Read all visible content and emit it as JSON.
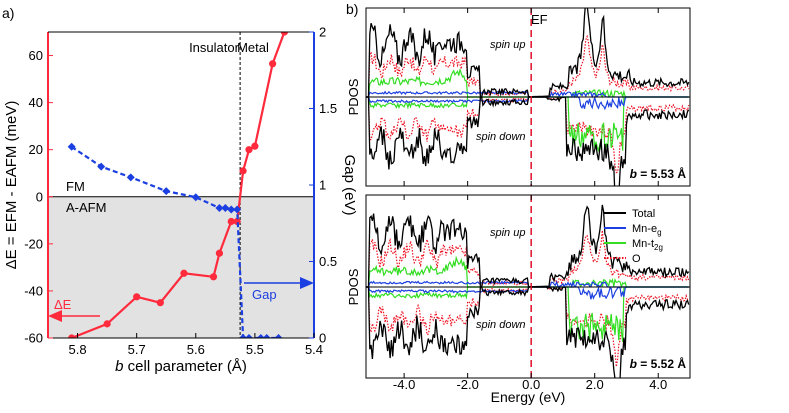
{
  "figure": {
    "panel_a_label": "a)",
    "panel_b_label": "b)"
  },
  "chart_data": [
    {
      "type": "line",
      "panel": "a",
      "xlabel": "b cell parameter (Å)",
      "xlabel_italic": "b",
      "xlabel_rest": " cell parameter (Å)",
      "ylabel_left": "ΔE = EFM - EAFM  (meV)",
      "ylabel_right": "Gap (eV)",
      "xlim": [
        5.85,
        5.4
      ],
      "ylim_left": [
        -60,
        70
      ],
      "ylim_right": [
        0,
        2
      ],
      "x_ticks": [
        5.8,
        5.7,
        5.6,
        5.5,
        5.4
      ],
      "x_tick_labels": [
        "5.8",
        "5.7",
        "5.6",
        "5.5",
        "5.4"
      ],
      "y_left_ticks": [
        -60,
        -40,
        -20,
        0,
        20,
        40,
        60
      ],
      "y_left_tick_labels": [
        "-60",
        "-40",
        "-20",
        "0",
        "20",
        "40",
        "60"
      ],
      "y_right_ticks": [
        0,
        0.5,
        1,
        1.5,
        2
      ],
      "y_right_tick_labels": [
        "0",
        "0.5",
        "1",
        "1.5",
        "2"
      ],
      "region_labels": {
        "insulator": "Insulator",
        "metal": "Metal",
        "fm": "FM",
        "afm": "A-AFM"
      },
      "transition_x": 5.525,
      "shaded_below_zero": true,
      "series": [
        {
          "name": "ΔE",
          "axis": "left",
          "color": "#ff2a3c",
          "style": "solid",
          "x": [
            5.81,
            5.75,
            5.7,
            5.66,
            5.62,
            5.57,
            5.56,
            5.54,
            5.53,
            5.52,
            5.51,
            5.5,
            5.47,
            5.45
          ],
          "y": [
            -60,
            -54,
            -42.5,
            -45,
            -32.5,
            -34,
            -24,
            -10.5,
            -10.5,
            11,
            20,
            21.5,
            56.5,
            70
          ]
        },
        {
          "name": "Gap",
          "axis": "right",
          "color": "#1b3fe0",
          "style": "dashed",
          "x": [
            5.81,
            5.76,
            5.71,
            5.65,
            5.6,
            5.56,
            5.55,
            5.54,
            5.53,
            5.52,
            5.51,
            5.49,
            5.48,
            5.46
          ],
          "y": [
            1.25,
            1.12,
            1.05,
            0.96,
            0.92,
            0.85,
            0.85,
            0.84,
            0.84,
            0.0,
            0.0,
            0.0,
            0.0,
            0.0
          ]
        }
      ],
      "arrows": [
        {
          "label": "ΔE",
          "color": "#ff2a3c",
          "direction": "left"
        },
        {
          "label": "Gap",
          "color": "#1b3fe0",
          "direction": "right"
        }
      ]
    },
    {
      "type": "line",
      "panel": "b",
      "xlabel": "Energy (eV)",
      "ylabel": "PDOS",
      "xlim": [
        -5.2,
        5.0
      ],
      "x_ticks": [
        -4.0,
        -2.0,
        0.0,
        2.0,
        4.0
      ],
      "x_tick_labels": [
        "-4.0",
        "-2.0",
        "0.0",
        "2.0",
        "4.0"
      ],
      "fermi_label": "EF",
      "legend": [
        {
          "name": "Total",
          "color": "#000000",
          "style": "solid"
        },
        {
          "name": "Mn-eg",
          "color": "#1b3fe0",
          "style": "solid"
        },
        {
          "name": "Mn-t2g",
          "color": "#33dd22",
          "style": "solid"
        },
        {
          "name": "O",
          "color": "#ee1122",
          "style": "dotted"
        }
      ],
      "legend_texts": [
        "Total",
        "Mn-e",
        "g",
        "Mn-t",
        "2g",
        "O"
      ],
      "subpanels": [
        {
          "name": "b = 5.53 Å",
          "label_italic": "b",
          "label_rest": " = 5.53 Å",
          "spin_up": "spin up",
          "spin_down": "spin down"
        },
        {
          "name": "b = 5.52 Å",
          "label_italic": "b",
          "label_rest": " = 5.52 Å",
          "spin_up": "spin up",
          "spin_down": "spin down"
        }
      ]
    }
  ]
}
